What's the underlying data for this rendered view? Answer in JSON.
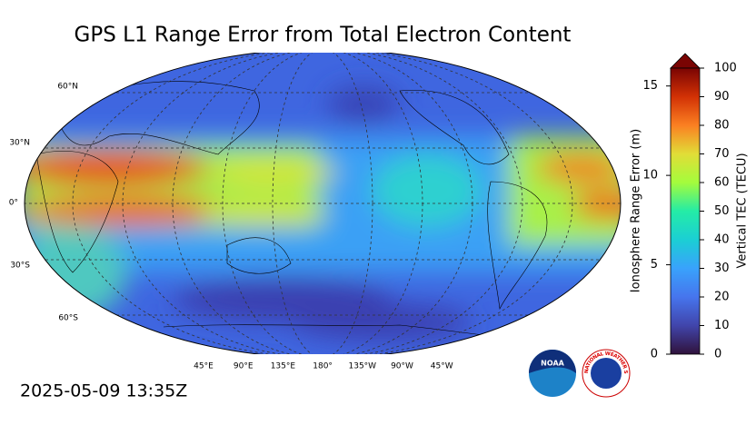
{
  "title": "GPS L1 Range Error from Total Electron Content",
  "timestamp": "2025-05-09 13:35Z",
  "map": {
    "lat_labels": [
      "60°N",
      "30°N",
      "0°",
      "30°S",
      "60°S"
    ],
    "lon_labels": [
      "45°E",
      "90°E",
      "135°E",
      "180°",
      "135°W",
      "90°W",
      "45°W"
    ]
  },
  "logos": {
    "noaa": "NOAA",
    "nws": "NATIONAL WEATHER SERVICE"
  },
  "colorbar": {
    "left_label": "Ionosphere Range Error (m)",
    "right_label": "Vertical TEC (TECU)",
    "left_lim": [
      0,
      16
    ],
    "left_ticks": [
      0,
      5,
      10,
      15
    ],
    "right_lim": [
      0,
      100
    ],
    "right_ticks": [
      0,
      10,
      20,
      30,
      40,
      50,
      60,
      70,
      80,
      90,
      100
    ]
  }
}
